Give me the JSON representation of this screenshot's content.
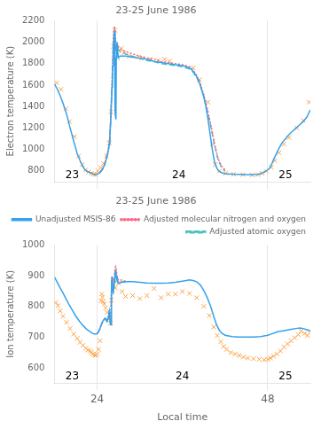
{
  "chart_data": [
    {
      "type": "line",
      "title": "23-25 June 1986",
      "y_label": "Electron temperature (K)",
      "xlim": [
        18,
        54
      ],
      "ylim": [
        700,
        2200
      ],
      "xticks": [
        24,
        48
      ],
      "yticks": [
        800,
        1000,
        1200,
        1400,
        1600,
        1800,
        2000,
        2200
      ],
      "grid": "x",
      "tick_labels": "y",
      "annotations": [
        {
          "text": "23",
          "x": 20.5,
          "y": 730
        },
        {
          "text": "24",
          "x": 35.5,
          "y": 730
        },
        {
          "text": "25",
          "x": 50.5,
          "y": 730
        }
      ],
      "series": [
        {
          "line_style": "solid",
          "x": [
            18.0,
            18.4,
            18.8,
            19.2,
            19.7,
            20.2,
            20.7,
            21.2,
            21.7,
            22.0,
            22.3,
            22.6,
            23.0,
            23.3,
            23.5,
            23.7,
            23.9,
            24.0,
            24.2,
            24.4,
            24.6,
            24.8,
            25.0,
            25.2,
            25.4,
            25.6,
            25.7,
            25.8,
            25.9,
            26.0,
            26.1,
            26.15,
            26.2,
            26.25,
            26.3,
            26.35,
            26.4,
            26.45,
            26.5,
            26.52,
            26.55,
            26.6,
            26.65,
            26.7,
            26.75,
            26.8,
            26.85,
            26.9,
            26.95,
            27.0,
            27.2,
            27.5,
            28.0,
            29.0,
            30.0,
            31.0,
            32.0,
            33.0,
            34.0,
            35.0,
            36.0,
            37.0,
            37.5,
            38.0,
            38.5,
            39.0,
            39.3,
            39.6,
            39.9,
            40.2,
            40.5,
            40.8,
            41.1,
            41.5,
            42.0,
            43.0,
            44.0,
            45.0,
            46.0,
            46.5,
            47.0,
            47.5,
            48.0,
            48.3,
            48.6,
            49.0,
            49.5,
            50.0,
            50.5,
            51.0,
            51.5,
            52.0,
            52.5,
            53.0,
            53.5,
            54.0
          ],
          "values": [
            1610,
            1560,
            1500,
            1430,
            1330,
            1200,
            1080,
            960,
            880,
            840,
            810,
            795,
            785,
            775,
            770,
            768,
            768,
            770,
            775,
            785,
            800,
            820,
            850,
            890,
            940,
            1000,
            1050,
            1130,
            1250,
            1420,
            1580,
            1680,
            1780,
            1870,
            1960,
            2030,
            2080,
            2100,
            1580,
            1450,
            1350,
            1300,
            1280,
            1850,
            1950,
            2000,
            1970,
            1900,
            1870,
            1860,
            1870,
            1870,
            1870,
            1860,
            1850,
            1840,
            1820,
            1810,
            1800,
            1790,
            1780,
            1760,
            1730,
            1680,
            1600,
            1490,
            1400,
            1280,
            1140,
            1000,
            890,
            830,
            800,
            785,
            775,
            770,
            768,
            765,
            765,
            768,
            775,
            790,
            810,
            830,
            870,
            930,
            1000,
            1060,
            1100,
            1140,
            1170,
            1200,
            1230,
            1260,
            1300,
            1370
          ]
        },
        {
          "line_style": "dotted",
          "x": [
            24.4,
            24.6,
            24.8,
            25.0,
            25.2,
            25.4,
            25.6,
            25.7,
            25.8,
            25.9,
            26.0,
            26.1,
            26.15,
            26.2,
            26.25,
            26.3,
            26.35,
            26.4,
            26.45,
            26.5,
            26.55,
            26.6,
            26.65,
            26.7,
            26.75,
            26.8,
            26.85,
            26.9,
            26.95,
            27.0,
            27.2,
            27.5,
            28.0,
            29.0,
            30.0,
            31.0,
            32.0,
            33.0,
            34.0,
            35.0,
            36.0,
            37.0,
            37.5,
            38.0,
            38.5,
            39.0,
            39.5,
            40.0,
            40.5,
            41.0,
            41.5,
            42.0
          ],
          "values": [
            790,
            805,
            825,
            855,
            895,
            950,
            1010,
            1060,
            1150,
            1280,
            1460,
            1640,
            1750,
            1860,
            1960,
            2040,
            2100,
            2130,
            2150,
            2120,
            2070,
            2010,
            1960,
            1940,
            1940,
            1950,
            1960,
            1960,
            1955,
            1950,
            1940,
            1930,
            1910,
            1890,
            1870,
            1850,
            1840,
            1820,
            1810,
            1800,
            1790,
            1770,
            1740,
            1690,
            1620,
            1510,
            1380,
            1230,
            1060,
            920,
            845,
            810
          ]
        },
        {
          "line_style": "dashed",
          "x": [
            24.4,
            24.6,
            24.8,
            25.0,
            25.2,
            25.4,
            25.6,
            25.7,
            25.8,
            25.9,
            26.0,
            26.1,
            26.15,
            26.2,
            26.25,
            26.3,
            26.35,
            26.4,
            26.45,
            26.5,
            26.55,
            26.6,
            26.65,
            26.7,
            26.75,
            26.8,
            26.85,
            26.9,
            26.95,
            27.0,
            27.2,
            27.5,
            28.0,
            29.0,
            30.0,
            31.0,
            32.0,
            33.0,
            34.0,
            35.0,
            36.0,
            37.0,
            37.5,
            38.0,
            38.5,
            39.0,
            39.5,
            40.0,
            40.5,
            41.0,
            41.5,
            42.0
          ],
          "values": [
            790,
            803,
            822,
            850,
            888,
            940,
            1000,
            1048,
            1135,
            1265,
            1440,
            1610,
            1720,
            1830,
            1930,
            2010,
            2070,
            2100,
            2110,
            2080,
            2030,
            1975,
            1930,
            1910,
            1910,
            1920,
            1930,
            1935,
            1932,
            1928,
            1918,
            1908,
            1888,
            1868,
            1848,
            1828,
            1818,
            1800,
            1790,
            1780,
            1770,
            1750,
            1720,
            1670,
            1605,
            1495,
            1360,
            1210,
            1045,
            908,
            835,
            800
          ]
        },
        {
          "type": "scatter",
          "marker": "x",
          "x": [
            18.3,
            18.9,
            19.6,
            20.1,
            20.8,
            21.4,
            21.9,
            22.4,
            22.8,
            23.2,
            23.5,
            23.8,
            24.1,
            24.5,
            24.9,
            25.3,
            25.7,
            25.95,
            26.3,
            26.5,
            26.7,
            26.85,
            27.1,
            27.4,
            27.8,
            28.5,
            29.8,
            30.3,
            31.5,
            32.6,
            33.5,
            34.2,
            37.5,
            38.4,
            39.6,
            40.2,
            40.6,
            41.2,
            42.1,
            43.2,
            44.5,
            45.8,
            46.6,
            47.2,
            47.8,
            48.5,
            49.0,
            49.6,
            50.3,
            51.0,
            52.1,
            53.0,
            53.8
          ],
          "values": [
            1620,
            1560,
            1380,
            1260,
            1120,
            940,
            860,
            810,
            790,
            778,
            770,
            768,
            800,
            830,
            870,
            940,
            1060,
            1350,
            1960,
            2110,
            1960,
            1880,
            1920,
            1940,
            1900,
            1870,
            1860,
            1850,
            1840,
            1830,
            1840,
            1820,
            1760,
            1650,
            1440,
            1050,
            860,
            800,
            780,
            770,
            765,
            762,
            765,
            778,
            798,
            835,
            895,
            970,
            1050,
            1110,
            1200,
            1270,
            1440
          ]
        }
      ]
    },
    {
      "type": "line",
      "title": "23-25 June 1986",
      "y_label": "Ion temperature (K)",
      "x_label": "Local time",
      "xlim": [
        18,
        54
      ],
      "ylim": [
        550,
        1000
      ],
      "xticks": [
        24,
        48
      ],
      "yticks": [
        600,
        700,
        800,
        900,
        1000
      ],
      "grid": "x",
      "legend": "upper right",
      "annotations": [
        {
          "text": "23",
          "x": 20.5,
          "y": 562
        },
        {
          "text": "24",
          "x": 36.0,
          "y": 562
        },
        {
          "text": "25",
          "x": 50.5,
          "y": 562
        }
      ],
      "series": [
        {
          "name": "Unadjusted MSIS-86",
          "line_style": "solid",
          "x": [
            18.0,
            18.4,
            18.8,
            19.2,
            19.6,
            20.0,
            20.5,
            21.0,
            21.5,
            22.0,
            22.5,
            23.0,
            23.3,
            23.5,
            23.7,
            23.9,
            24.0,
            24.2,
            24.4,
            24.6,
            24.8,
            25.0,
            25.1,
            25.2,
            25.3,
            25.4,
            25.5,
            25.6,
            25.65,
            25.7,
            25.75,
            25.8,
            25.85,
            25.9,
            25.95,
            26.0,
            26.05,
            26.1,
            26.15,
            26.2,
            26.25,
            26.3,
            26.35,
            26.4,
            26.45,
            26.5,
            26.55,
            26.6,
            26.65,
            26.7,
            26.8,
            26.9,
            27.0,
            27.5,
            28.0,
            29.0,
            30.0,
            31.0,
            32.0,
            33.0,
            34.0,
            35.0,
            36.0,
            37.0,
            37.5,
            38.0,
            38.5,
            39.0,
            39.5,
            40.0,
            40.4,
            40.8,
            41.2,
            41.6,
            42.0,
            43.0,
            44.0,
            45.0,
            46.0,
            47.0,
            48.0,
            48.5,
            49.0,
            49.5,
            50.0,
            50.5,
            51.0,
            51.5,
            52.0,
            52.5,
            53.0,
            53.5,
            54.0
          ],
          "values": [
            895,
            878,
            860,
            843,
            825,
            808,
            788,
            768,
            752,
            738,
            726,
            718,
            713,
            711,
            710,
            710,
            712,
            718,
            728,
            742,
            752,
            758,
            762,
            760,
            755,
            752,
            758,
            768,
            775,
            782,
            775,
            760,
            748,
            740,
            740,
            840,
            875,
            895,
            880,
            860,
            840,
            850,
            862,
            870,
            878,
            900,
            908,
            910,
            905,
            898,
            885,
            878,
            875,
            878,
            880,
            880,
            878,
            876,
            875,
            875,
            876,
            878,
            882,
            886,
            884,
            880,
            870,
            852,
            828,
            798,
            768,
            740,
            722,
            712,
            706,
            702,
            700,
            700,
            700,
            702,
            706,
            710,
            714,
            718,
            720,
            722,
            724,
            726,
            728,
            730,
            728,
            724,
            720
          ]
        },
        {
          "name": "Adjusted molecular nitrogen and oxygen",
          "line_style": "dotted",
          "x": [
            24.0,
            24.2,
            24.4,
            24.6,
            24.8,
            25.0,
            25.2,
            25.4,
            25.5,
            25.6,
            25.7,
            25.8,
            25.9,
            26.0,
            26.05,
            26.1,
            26.15,
            26.2,
            26.25,
            26.3,
            26.35,
            26.4,
            26.45,
            26.5,
            26.55,
            26.6,
            26.65,
            26.7,
            26.8,
            26.9,
            27.0,
            27.5,
            28.0
          ],
          "values": [
            712,
            718,
            728,
            742,
            752,
            758,
            760,
            752,
            758,
            768,
            780,
            762,
            745,
            845,
            880,
            900,
            885,
            865,
            848,
            858,
            870,
            880,
            892,
            918,
            928,
            930,
            924,
            916,
            900,
            890,
            885,
            885,
            882
          ]
        },
        {
          "name": "Adjusted atomic oxygen",
          "line_style": "dashed",
          "x": [
            24.0,
            24.2,
            24.4,
            24.6,
            24.8,
            25.0,
            25.2,
            25.4,
            25.5,
            25.6,
            25.7,
            25.8,
            25.9,
            26.0,
            26.05,
            26.1,
            26.15,
            26.2,
            26.25,
            26.3,
            26.35,
            26.4,
            26.45,
            26.5,
            26.55,
            26.6,
            26.65,
            26.7,
            26.8,
            26.9,
            27.0,
            27.5,
            28.0
          ],
          "values": [
            712,
            717,
            726,
            740,
            750,
            756,
            758,
            750,
            755,
            765,
            776,
            758,
            742,
            840,
            875,
            895,
            880,
            860,
            843,
            853,
            865,
            875,
            888,
            912,
            922,
            924,
            918,
            910,
            895,
            885,
            880,
            880,
            878
          ]
        },
        {
          "type": "scatter",
          "marker": "x",
          "x": [
            18.2,
            18.5,
            18.8,
            19.2,
            19.7,
            20.2,
            20.7,
            21.2,
            21.6,
            22.0,
            22.4,
            22.7,
            23.0,
            23.2,
            23.4,
            23.6,
            23.8,
            24.0,
            24.2,
            24.4,
            24.55,
            24.65,
            24.75,
            24.85,
            25.0,
            25.2,
            25.4,
            25.7,
            25.85,
            26.0,
            26.3,
            26.55,
            27.0,
            27.5,
            28.0,
            29.0,
            30.0,
            31.0,
            32.0,
            33.0,
            34.0,
            35.0,
            36.0,
            37.0,
            38.0,
            39.0,
            39.8,
            40.4,
            40.9,
            41.4,
            41.8,
            42.2,
            42.8,
            43.4,
            44.0,
            44.6,
            45.2,
            46.0,
            46.8,
            47.5,
            48.0,
            48.4,
            48.8,
            49.3,
            49.8,
            50.3,
            50.8,
            51.3,
            51.8,
            52.3,
            52.7,
            53.2,
            53.6,
            54.0
          ],
          "values": [
            812,
            802,
            785,
            768,
            748,
            728,
            710,
            696,
            683,
            673,
            664,
            658,
            655,
            650,
            645,
            642,
            640,
            645,
            660,
            688,
            818,
            840,
            830,
            815,
            808,
            795,
            780,
            760,
            745,
            820,
            888,
            860,
            875,
            848,
            832,
            835,
            825,
            835,
            858,
            828,
            840,
            840,
            848,
            842,
            828,
            800,
            770,
            733,
            705,
            685,
            670,
            660,
            650,
            645,
            640,
            635,
            632,
            630,
            628,
            626,
            628,
            632,
            638,
            645,
            655,
            668,
            678,
            688,
            698,
            708,
            720,
            712,
            705,
            718
          ]
        }
      ]
    }
  ]
}
